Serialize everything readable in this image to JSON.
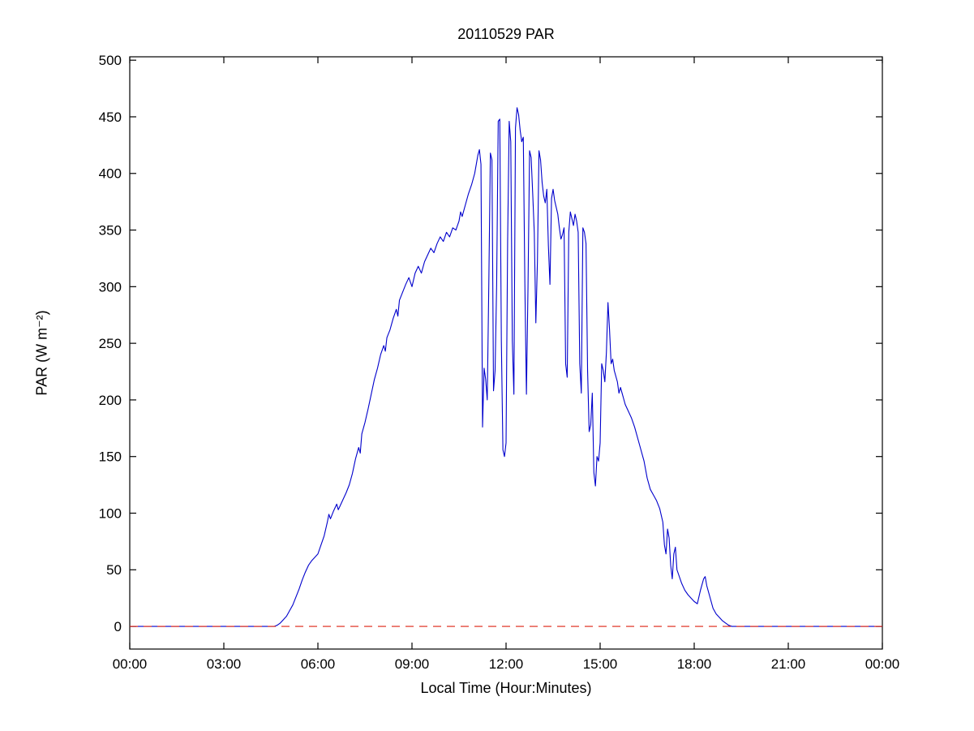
{
  "figure": {
    "title": "20110529 PAR",
    "xlabel": "Local Time (Hour:Minutes)",
    "ylabel": "PAR (W m⁻²)"
  },
  "chart_data": {
    "type": "line",
    "title": "20110529 PAR",
    "xlabel": "Local Time (Hour:Minutes)",
    "ylabel": "PAR (W m⁻²)",
    "xlim": [
      0,
      24
    ],
    "ylim": [
      -20,
      503
    ],
    "x_ticks": [
      0,
      3,
      6,
      9,
      12,
      15,
      18,
      21,
      24
    ],
    "x_tick_labels": [
      "00:00",
      "03:00",
      "06:00",
      "09:00",
      "12:00",
      "15:00",
      "18:00",
      "21:00",
      "00:00"
    ],
    "y_ticks": [
      0,
      50,
      100,
      150,
      200,
      250,
      300,
      350,
      400,
      450,
      500
    ],
    "y_tick_labels": [
      "0",
      "50",
      "100",
      "150",
      "200",
      "250",
      "300",
      "350",
      "400",
      "450",
      "500"
    ],
    "grid": false,
    "legend": "none",
    "series": [
      {
        "name": "PAR",
        "color": "#0000cc",
        "style": "solid",
        "points": [
          [
            0,
            0
          ],
          [
            0.5,
            0
          ],
          [
            1,
            0
          ],
          [
            1.5,
            0
          ],
          [
            2,
            0
          ],
          [
            2.5,
            0
          ],
          [
            3,
            0
          ],
          [
            3.5,
            0
          ],
          [
            4,
            0
          ],
          [
            4.4,
            0
          ],
          [
            4.6,
            0
          ],
          [
            4.7,
            1
          ],
          [
            4.8,
            3
          ],
          [
            4.9,
            6
          ],
          [
            5.0,
            9
          ],
          [
            5.1,
            14
          ],
          [
            5.2,
            19
          ],
          [
            5.3,
            26
          ],
          [
            5.4,
            33
          ],
          [
            5.5,
            41
          ],
          [
            5.6,
            48
          ],
          [
            5.7,
            54
          ],
          [
            5.8,
            58
          ],
          [
            5.9,
            61
          ],
          [
            6.0,
            64
          ],
          [
            6.1,
            72
          ],
          [
            6.2,
            80
          ],
          [
            6.3,
            92
          ],
          [
            6.35,
            99
          ],
          [
            6.4,
            95
          ],
          [
            6.5,
            102
          ],
          [
            6.6,
            108
          ],
          [
            6.65,
            103
          ],
          [
            6.7,
            106
          ],
          [
            6.8,
            112
          ],
          [
            6.9,
            118
          ],
          [
            7.0,
            125
          ],
          [
            7.1,
            135
          ],
          [
            7.2,
            148
          ],
          [
            7.3,
            158
          ],
          [
            7.35,
            153
          ],
          [
            7.4,
            170
          ],
          [
            7.5,
            180
          ],
          [
            7.6,
            192
          ],
          [
            7.7,
            205
          ],
          [
            7.8,
            218
          ],
          [
            7.9,
            228
          ],
          [
            8.0,
            240
          ],
          [
            8.1,
            248
          ],
          [
            8.15,
            243
          ],
          [
            8.2,
            255
          ],
          [
            8.3,
            262
          ],
          [
            8.4,
            272
          ],
          [
            8.5,
            280
          ],
          [
            8.55,
            274
          ],
          [
            8.6,
            288
          ],
          [
            8.7,
            295
          ],
          [
            8.8,
            302
          ],
          [
            8.9,
            308
          ],
          [
            9.0,
            300
          ],
          [
            9.1,
            312
          ],
          [
            9.2,
            318
          ],
          [
            9.3,
            312
          ],
          [
            9.4,
            322
          ],
          [
            9.5,
            328
          ],
          [
            9.6,
            334
          ],
          [
            9.7,
            330
          ],
          [
            9.8,
            338
          ],
          [
            9.9,
            344
          ],
          [
            10.0,
            340
          ],
          [
            10.1,
            348
          ],
          [
            10.2,
            344
          ],
          [
            10.3,
            352
          ],
          [
            10.4,
            350
          ],
          [
            10.5,
            358
          ],
          [
            10.55,
            366
          ],
          [
            10.6,
            362
          ],
          [
            10.7,
            372
          ],
          [
            10.8,
            382
          ],
          [
            10.9,
            390
          ],
          [
            11.0,
            400
          ],
          [
            11.05,
            408
          ],
          [
            11.1,
            416
          ],
          [
            11.15,
            421
          ],
          [
            11.2,
            408
          ],
          [
            11.25,
            176
          ],
          [
            11.3,
            228
          ],
          [
            11.35,
            218
          ],
          [
            11.4,
            200
          ],
          [
            11.45,
            302
          ],
          [
            11.5,
            418
          ],
          [
            11.55,
            412
          ],
          [
            11.6,
            208
          ],
          [
            11.65,
            226
          ],
          [
            11.7,
            302
          ],
          [
            11.75,
            446
          ],
          [
            11.8,
            448
          ],
          [
            11.85,
            252
          ],
          [
            11.9,
            156
          ],
          [
            11.95,
            150
          ],
          [
            12.0,
            162
          ],
          [
            12.05,
            340
          ],
          [
            12.1,
            446
          ],
          [
            12.15,
            428
          ],
          [
            12.2,
            252
          ],
          [
            12.25,
            205
          ],
          [
            12.3,
            440
          ],
          [
            12.35,
            458
          ],
          [
            12.4,
            452
          ],
          [
            12.45,
            438
          ],
          [
            12.5,
            428
          ],
          [
            12.55,
            432
          ],
          [
            12.6,
            302
          ],
          [
            12.65,
            205
          ],
          [
            12.7,
            300
          ],
          [
            12.75,
            420
          ],
          [
            12.8,
            414
          ],
          [
            12.85,
            382
          ],
          [
            12.9,
            348
          ],
          [
            12.95,
            268
          ],
          [
            13.0,
            322
          ],
          [
            13.05,
            420
          ],
          [
            13.1,
            412
          ],
          [
            13.15,
            392
          ],
          [
            13.2,
            380
          ],
          [
            13.25,
            374
          ],
          [
            13.3,
            386
          ],
          [
            13.35,
            336
          ],
          [
            13.4,
            302
          ],
          [
            13.45,
            378
          ],
          [
            13.5,
            386
          ],
          [
            13.55,
            376
          ],
          [
            13.6,
            370
          ],
          [
            13.65,
            364
          ],
          [
            13.7,
            352
          ],
          [
            13.75,
            342
          ],
          [
            13.8,
            346
          ],
          [
            13.85,
            352
          ],
          [
            13.9,
            232
          ],
          [
            13.95,
            220
          ],
          [
            14.0,
            348
          ],
          [
            14.05,
            366
          ],
          [
            14.1,
            360
          ],
          [
            14.15,
            354
          ],
          [
            14.2,
            364
          ],
          [
            14.25,
            358
          ],
          [
            14.3,
            348
          ],
          [
            14.35,
            232
          ],
          [
            14.4,
            206
          ],
          [
            14.45,
            352
          ],
          [
            14.5,
            348
          ],
          [
            14.55,
            338
          ],
          [
            14.6,
            226
          ],
          [
            14.65,
            172
          ],
          [
            14.7,
            178
          ],
          [
            14.75,
            206
          ],
          [
            14.8,
            136
          ],
          [
            14.85,
            124
          ],
          [
            14.9,
            150
          ],
          [
            14.95,
            146
          ],
          [
            15.0,
            162
          ],
          [
            15.05,
            232
          ],
          [
            15.1,
            226
          ],
          [
            15.15,
            216
          ],
          [
            15.2,
            242
          ],
          [
            15.25,
            286
          ],
          [
            15.3,
            262
          ],
          [
            15.35,
            232
          ],
          [
            15.4,
            236
          ],
          [
            15.45,
            226
          ],
          [
            15.5,
            221
          ],
          [
            15.55,
            216
          ],
          [
            15.6,
            206
          ],
          [
            15.65,
            211
          ],
          [
            15.7,
            206
          ],
          [
            15.75,
            201
          ],
          [
            15.8,
            196
          ],
          [
            15.9,
            190
          ],
          [
            16.0,
            184
          ],
          [
            16.1,
            176
          ],
          [
            16.2,
            166
          ],
          [
            16.3,
            156
          ],
          [
            16.4,
            146
          ],
          [
            16.5,
            131
          ],
          [
            16.6,
            121
          ],
          [
            16.7,
            116
          ],
          [
            16.8,
            111
          ],
          [
            16.9,
            104
          ],
          [
            17.0,
            92
          ],
          [
            17.05,
            72
          ],
          [
            17.1,
            64
          ],
          [
            17.15,
            86
          ],
          [
            17.2,
            78
          ],
          [
            17.25,
            54
          ],
          [
            17.3,
            42
          ],
          [
            17.35,
            64
          ],
          [
            17.4,
            70
          ],
          [
            17.45,
            50
          ],
          [
            17.5,
            46
          ],
          [
            17.6,
            38
          ],
          [
            17.7,
            32
          ],
          [
            17.8,
            28
          ],
          [
            17.9,
            25
          ],
          [
            18.0,
            22
          ],
          [
            18.1,
            20
          ],
          [
            18.2,
            32
          ],
          [
            18.3,
            42
          ],
          [
            18.35,
            44
          ],
          [
            18.4,
            36
          ],
          [
            18.5,
            26
          ],
          [
            18.6,
            16
          ],
          [
            18.7,
            11
          ],
          [
            18.8,
            8
          ],
          [
            18.9,
            5
          ],
          [
            19.0,
            3
          ],
          [
            19.1,
            1
          ],
          [
            19.2,
            0
          ],
          [
            19.5,
            0
          ],
          [
            20.0,
            0
          ],
          [
            20.5,
            0
          ],
          [
            21.0,
            0
          ],
          [
            21.5,
            0
          ],
          [
            22.0,
            0
          ],
          [
            22.5,
            0
          ],
          [
            23.0,
            0
          ],
          [
            23.5,
            0
          ],
          [
            24.0,
            0
          ]
        ]
      },
      {
        "name": "zero-reference",
        "color": "#dd2211",
        "style": "dashed",
        "points": [
          [
            0,
            0
          ],
          [
            24,
            0
          ]
        ]
      }
    ]
  }
}
